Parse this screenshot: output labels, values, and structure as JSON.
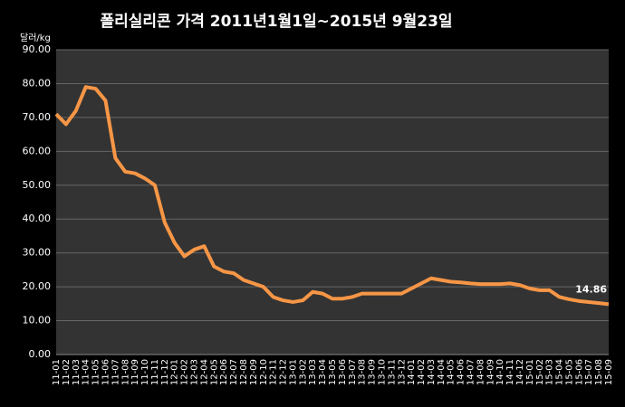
{
  "chart_data": {
    "type": "line",
    "title": "폴리실리콘 가격    2011년1월1일~2015년 9월23일",
    "y_label": "달러/kg",
    "categories": [
      "11-01",
      "11-02",
      "11-03",
      "11-04",
      "11-05",
      "11-06",
      "11-07",
      "11-08",
      "11-09",
      "11-10",
      "11-11",
      "11-12",
      "12-01",
      "12-02",
      "12-03",
      "12-04",
      "12-05",
      "12-06",
      "12-07",
      "12-08",
      "12-09",
      "12-10",
      "12-11",
      "12-12",
      "13-01",
      "13-02",
      "13-03",
      "13-04",
      "13-05",
      "13-06",
      "13-07",
      "13-08",
      "13-09",
      "13-10",
      "13-11",
      "13-12",
      "14-01",
      "14-02",
      "14-03",
      "14-04",
      "14-05",
      "14-06",
      "14-07",
      "14-08",
      "14-09",
      "14-10",
      "14-11",
      "14-12",
      "15-01",
      "15-02",
      "15-03",
      "15-04",
      "15-05",
      "15-06",
      "15-07",
      "15-08",
      "15-09"
    ],
    "series": [
      {
        "color": "#f79646",
        "values": [
          71,
          68,
          72,
          79,
          78.5,
          75,
          58,
          54,
          53.5,
          52,
          50,
          39,
          33,
          29,
          31,
          32,
          26,
          24.5,
          24,
          22,
          21,
          20,
          17,
          16,
          15.5,
          16,
          18.5,
          18,
          16.5,
          16.5,
          17,
          18,
          18,
          18,
          18,
          18,
          19.5,
          21,
          22.5,
          22,
          21.5,
          21.3,
          21,
          20.8,
          20.8,
          20.8,
          21,
          20.5,
          19.5,
          19,
          19,
          17,
          16.3,
          15.8,
          15.5,
          15.2,
          14.86
        ]
      }
    ],
    "ylim": [
      0,
      90
    ],
    "yticks": [
      {
        "value": 0,
        "label": "0.00"
      },
      {
        "value": 10,
        "label": "10.00"
      },
      {
        "value": 20,
        "label": "20.00"
      },
      {
        "value": 30,
        "label": "30.00"
      },
      {
        "value": 40,
        "label": "40.00"
      },
      {
        "value": 50,
        "label": "50.00"
      },
      {
        "value": 60,
        "label": "60.00"
      },
      {
        "value": 70,
        "label": "70.00"
      },
      {
        "value": 80,
        "label": "80.00"
      },
      {
        "value": 90,
        "label": "90.00"
      }
    ],
    "grid": true
  }
}
